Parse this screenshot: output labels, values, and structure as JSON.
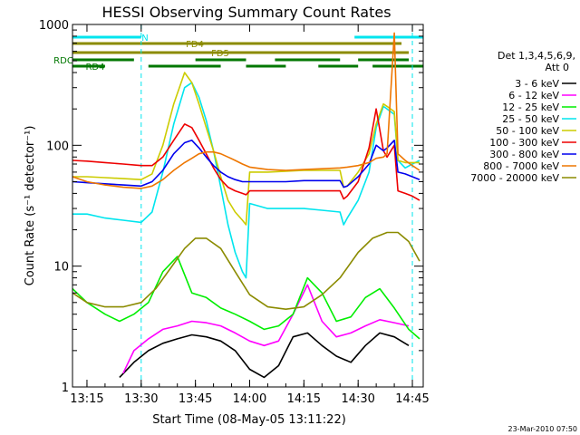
{
  "chart_data": {
    "type": "line",
    "title": "HESSI Observing Summary Count Rates",
    "xlabel": "Start Time (08-May-05 13:11:22)",
    "ylabel": "Count Rate (s⁻¹ detector⁻¹)",
    "y_scale": "log",
    "ylim": [
      1,
      1000
    ],
    "xlim": [
      "13:11",
      "14:48"
    ],
    "x_ticks": [
      "13:15",
      "13:30",
      "13:45",
      "14:00",
      "14:15",
      "14:30",
      "14:45"
    ],
    "y_ticks": [
      "1",
      "10",
      "100",
      "1000"
    ],
    "footer_timestamp": "23-Mar-2010 07:50",
    "legend": {
      "header": [
        "Det 1,3,4,5,6,9,",
        "Att 0"
      ],
      "placement": "right"
    },
    "flag_bars": [
      {
        "label": "N",
        "color": "#00e5ee",
        "row": 1,
        "segments": [
          [
            "13:11",
            "13:30"
          ],
          [
            "14:29",
            "14:48"
          ]
        ]
      },
      {
        "label": "FD4",
        "color": "#8b8b00",
        "row": 2,
        "segments": [
          [
            "13:11",
            "14:42"
          ]
        ]
      },
      {
        "label": "FD5",
        "color": "#8b8b00",
        "row": 3,
        "segments": [
          [
            "13:11",
            "14:44"
          ]
        ]
      },
      {
        "label": "RDC",
        "color": "#007700",
        "row": 4,
        "segments": [
          [
            "13:11",
            "13:28"
          ],
          [
            "13:45",
            "13:59"
          ],
          [
            "14:07",
            "14:25"
          ],
          [
            "14:30",
            "14:44"
          ]
        ]
      },
      {
        "label": "RD4",
        "color": "#007700",
        "row": 5,
        "segments": [
          [
            "13:11",
            "13:20"
          ],
          [
            "13:32",
            "13:52"
          ],
          [
            "13:59",
            "14:10"
          ],
          [
            "14:19",
            "14:30"
          ],
          [
            "14:34",
            "14:48"
          ]
        ]
      }
    ],
    "series": [
      {
        "name": "3 - 6 keV",
        "color": "#000000",
        "x": [
          "13:24",
          "13:28",
          "13:32",
          "13:36",
          "13:40",
          "13:44",
          "13:48",
          "13:52",
          "13:56",
          "14:00",
          "14:04",
          "14:08",
          "14:12",
          "14:16",
          "14:20",
          "14:24",
          "14:28",
          "14:32",
          "14:36",
          "14:40",
          "14:44"
        ],
        "y": [
          1.2,
          1.6,
          2.0,
          2.3,
          2.5,
          2.7,
          2.6,
          2.4,
          2.0,
          1.4,
          1.2,
          1.5,
          2.6,
          2.8,
          2.2,
          1.8,
          1.6,
          2.2,
          2.8,
          2.6,
          2.2
        ]
      },
      {
        "name": "6 - 12 keV",
        "color": "#ff00ff",
        "x": [
          "13:25",
          "13:28",
          "13:32",
          "13:36",
          "13:40",
          "13:44",
          "13:48",
          "13:52",
          "13:56",
          "14:00",
          "14:04",
          "14:08",
          "14:12",
          "14:16",
          "14:20",
          "14:24",
          "14:28",
          "14:32",
          "14:36",
          "14:40",
          "14:44"
        ],
        "y": [
          1.3,
          2.0,
          2.5,
          3.0,
          3.2,
          3.5,
          3.4,
          3.2,
          2.8,
          2.4,
          2.2,
          2.4,
          4.0,
          7.0,
          3.5,
          2.6,
          2.8,
          3.2,
          3.6,
          3.4,
          3.2
        ]
      },
      {
        "name": "12 - 25 keV",
        "color": "#00ee00",
        "x": [
          "13:11",
          "13:15",
          "13:20",
          "13:24",
          "13:28",
          "13:32",
          "13:36",
          "13:40",
          "13:44",
          "13:48",
          "13:52",
          "13:56",
          "14:00",
          "14:04",
          "14:08",
          "14:12",
          "14:16",
          "14:20",
          "14:24",
          "14:28",
          "14:32",
          "14:36",
          "14:40",
          "14:44",
          "14:47"
        ],
        "y": [
          6.5,
          5.0,
          4.0,
          3.5,
          4.0,
          5.0,
          9.0,
          12.0,
          6.0,
          5.5,
          4.5,
          4.0,
          3.5,
          3.0,
          3.2,
          4.0,
          8.0,
          6.0,
          3.5,
          3.8,
          5.5,
          6.5,
          4.5,
          3.0,
          2.5
        ]
      },
      {
        "name": "25 - 50 keV",
        "color": "#00e5ee",
        "x": [
          "13:11",
          "13:15",
          "13:20",
          "13:25",
          "13:30",
          "13:33",
          "13:36",
          "13:39",
          "13:42",
          "13:44",
          "13:46",
          "13:48",
          "13:50",
          "13:52",
          "13:54",
          "13:56",
          "13:58",
          "13:59",
          "14:00",
          "14:05",
          "14:10",
          "14:15",
          "14:20",
          "14:25",
          "14:26",
          "14:27",
          "14:30",
          "14:33",
          "14:35",
          "14:37",
          "14:38",
          "14:40",
          "14:41",
          "14:43",
          "14:45",
          "14:47"
        ],
        "y": [
          27,
          27,
          25,
          24,
          23,
          28,
          60,
          150,
          300,
          330,
          250,
          160,
          90,
          45,
          22,
          13,
          9,
          8,
          33,
          30,
          30,
          30,
          29,
          28,
          22,
          25,
          35,
          60,
          140,
          210,
          200,
          180,
          75,
          65,
          70,
          75
        ]
      },
      {
        "name": "50 - 100 keV",
        "color": "#cccc00",
        "x": [
          "13:11",
          "13:15",
          "13:20",
          "13:25",
          "13:30",
          "13:33",
          "13:36",
          "13:39",
          "13:42",
          "13:44",
          "13:46",
          "13:48",
          "13:50",
          "13:52",
          "13:54",
          "13:56",
          "13:58",
          "13:59",
          "14:00",
          "14:05",
          "14:10",
          "14:15",
          "14:20",
          "14:25",
          "14:26",
          "14:27",
          "14:30",
          "14:33",
          "14:35",
          "14:37",
          "14:38",
          "14:40",
          "14:41",
          "14:43",
          "14:45",
          "14:47"
        ],
        "y": [
          55,
          55,
          54,
          53,
          52,
          58,
          100,
          220,
          400,
          330,
          220,
          140,
          90,
          55,
          35,
          28,
          24,
          22,
          60,
          60,
          61,
          62,
          62,
          62,
          45,
          46,
          60,
          85,
          150,
          220,
          210,
          190,
          75,
          72,
          72,
          72
        ]
      },
      {
        "name": "100 - 300 keV",
        "color": "#ee0000",
        "x": [
          "13:11",
          "13:15",
          "13:20",
          "13:25",
          "13:30",
          "13:33",
          "13:36",
          "13:39",
          "13:42",
          "13:44",
          "13:46",
          "13:48",
          "13:50",
          "13:52",
          "13:54",
          "13:56",
          "13:58",
          "13:59",
          "14:00",
          "14:05",
          "14:10",
          "14:15",
          "14:20",
          "14:25",
          "14:26",
          "14:27",
          "14:30",
          "14:33",
          "14:35",
          "14:37",
          "14:38",
          "14:40",
          "14:41",
          "14:43",
          "14:45",
          "14:47"
        ],
        "y": [
          75,
          74,
          72,
          70,
          68,
          68,
          80,
          110,
          150,
          140,
          110,
          85,
          65,
          52,
          45,
          42,
          40,
          39,
          42,
          42,
          42,
          42,
          42,
          42,
          36,
          38,
          50,
          95,
          200,
          90,
          80,
          100,
          42,
          40,
          38,
          35
        ]
      },
      {
        "name": "300 - 800 keV",
        "color": "#0000ee",
        "x": [
          "13:11",
          "13:15",
          "13:20",
          "13:25",
          "13:30",
          "13:33",
          "13:36",
          "13:39",
          "13:42",
          "13:44",
          "13:46",
          "13:48",
          "13:50",
          "13:52",
          "13:54",
          "13:56",
          "13:58",
          "13:59",
          "14:00",
          "14:05",
          "14:10",
          "14:15",
          "14:20",
          "14:25",
          "14:26",
          "14:27",
          "14:30",
          "14:33",
          "14:35",
          "14:37",
          "14:38",
          "14:40",
          "14:41",
          "14:43",
          "14:45",
          "14:47"
        ],
        "y": [
          50,
          49,
          48,
          47,
          46,
          50,
          62,
          85,
          105,
          110,
          95,
          80,
          68,
          60,
          55,
          52,
          50,
          50,
          50,
          50,
          50,
          51,
          51,
          51,
          45,
          46,
          55,
          70,
          100,
          90,
          95,
          110,
          60,
          58,
          55,
          52
        ]
      },
      {
        "name": "800 - 7000 keV",
        "color": "#ee7600",
        "x": [
          "13:11",
          "13:15",
          "13:20",
          "13:25",
          "13:30",
          "13:33",
          "13:36",
          "13:39",
          "13:42",
          "13:44",
          "13:46",
          "13:48",
          "13:50",
          "13:52",
          "13:54",
          "13:56",
          "13:58",
          "14:00",
          "14:05",
          "14:10",
          "14:15",
          "14:20",
          "14:25",
          "14:27",
          "14:30",
          "14:33",
          "14:35",
          "14:37",
          "14:38",
          "14:40",
          "14:41",
          "14:43",
          "14:45",
          "14:47"
        ],
        "y": [
          55,
          50,
          47,
          45,
          44,
          46,
          52,
          62,
          72,
          78,
          85,
          88,
          88,
          85,
          80,
          75,
          70,
          66,
          63,
          62,
          63,
          64,
          65,
          66,
          68,
          72,
          78,
          80,
          85,
          850,
          85,
          75,
          68,
          62
        ]
      },
      {
        "name": "7000 - 20000 keV",
        "color": "#8b8b00",
        "x": [
          "13:11",
          "13:15",
          "13:20",
          "13:25",
          "13:30",
          "13:34",
          "13:38",
          "13:42",
          "13:45",
          "13:48",
          "13:52",
          "13:56",
          "14:00",
          "14:05",
          "14:10",
          "14:15",
          "14:20",
          "14:25",
          "14:30",
          "14:34",
          "14:38",
          "14:41",
          "14:44",
          "14:47"
        ],
        "y": [
          6.0,
          5.0,
          4.6,
          4.6,
          5.0,
          6.5,
          9.5,
          14.0,
          17.0,
          17.0,
          14.0,
          9.0,
          5.8,
          4.6,
          4.4,
          4.6,
          5.8,
          8.0,
          13.0,
          17.0,
          19.0,
          19.0,
          16.0,
          11.0
        ]
      }
    ],
    "grid": false
  }
}
